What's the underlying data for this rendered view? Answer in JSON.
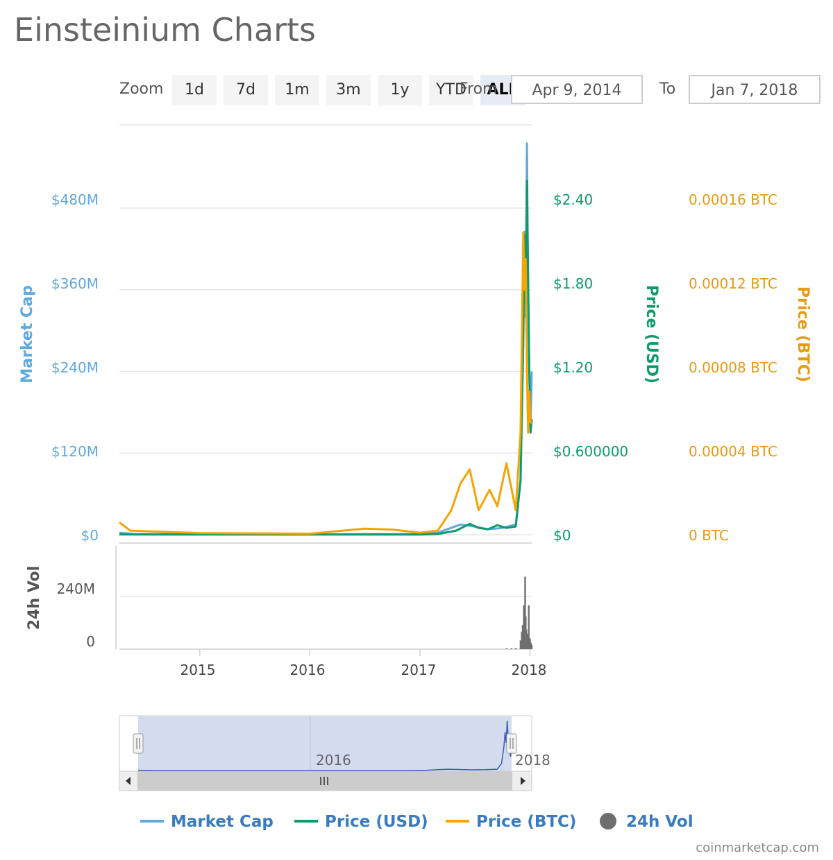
{
  "title": "Einsteinium Charts",
  "zoom": {
    "label": "Zoom",
    "buttons": [
      "1d",
      "7d",
      "1m",
      "3m",
      "1y",
      "YTD",
      "ALL"
    ],
    "active": "ALL"
  },
  "range": {
    "from_label": "From",
    "from_value": "Apr 9, 2014",
    "to_label": "To",
    "to_value": "Jan 7, 2018"
  },
  "colors": {
    "market_cap": "#5ea9dd",
    "price_usd": "#0d9a6e",
    "price_btc": "#f7a300",
    "volume": "#6e6e6e",
    "navigator": "#3b5cb8",
    "navigator_mask": "#d3dbef"
  },
  "chart_data": {
    "type": "line",
    "x_range": [
      "2014-04-09",
      "2018-01-07"
    ],
    "x_ticks": [
      "2015",
      "2016",
      "2017",
      "2018"
    ],
    "axes": {
      "market_cap": {
        "title": "Market Cap",
        "ticks": [
          "$0",
          "$120M",
          "$240M",
          "$360M",
          "$480M"
        ],
        "range": [
          0,
          600
        ]
      },
      "price_usd": {
        "title": "Price (USD)",
        "ticks": [
          "$0",
          "$0.600000",
          "$1.20",
          "$1.80",
          "$2.40"
        ],
        "range": [
          0,
          3.0
        ]
      },
      "price_btc": {
        "title": "Price (BTC)",
        "ticks": [
          "0 BTC",
          "0.00004 BTC",
          "0.00008 BTC",
          "0.00012 BTC",
          "0.00016 BTC"
        ],
        "range": [
          0,
          0.0002
        ]
      },
      "volume": {
        "title": "24h Vol",
        "ticks": [
          "0",
          "240M"
        ],
        "range": [
          0,
          400
        ]
      }
    },
    "series": [
      {
        "name": "Market Cap",
        "unit": "USD millions",
        "points": [
          [
            "2014-04-09",
            3
          ],
          [
            "2014-06-01",
            1
          ],
          [
            "2015-01-01",
            1
          ],
          [
            "2016-01-01",
            0.5
          ],
          [
            "2016-07-01",
            1
          ],
          [
            "2017-01-01",
            1
          ],
          [
            "2017-03-01",
            3
          ],
          [
            "2017-05-15",
            15
          ],
          [
            "2017-07-01",
            12
          ],
          [
            "2017-08-15",
            8
          ],
          [
            "2017-10-01",
            10
          ],
          [
            "2017-11-15",
            15
          ],
          [
            "2017-12-01",
            80
          ],
          [
            "2017-12-10",
            280
          ],
          [
            "2017-12-14",
            445
          ],
          [
            "2017-12-18",
            320
          ],
          [
            "2017-12-22",
            575
          ],
          [
            "2017-12-26",
            350
          ],
          [
            "2017-12-30",
            240
          ],
          [
            "2018-01-03",
            160
          ],
          [
            "2018-01-07",
            240
          ]
        ]
      },
      {
        "name": "Price (USD)",
        "points": [
          [
            "2014-04-09",
            0.002
          ],
          [
            "2015-01-01",
            0.001
          ],
          [
            "2016-01-01",
            0.0008
          ],
          [
            "2016-07-01",
            0.001
          ],
          [
            "2017-01-01",
            0.001
          ],
          [
            "2017-03-01",
            0.005
          ],
          [
            "2017-05-01",
            0.03
          ],
          [
            "2017-06-15",
            0.08
          ],
          [
            "2017-07-15",
            0.05
          ],
          [
            "2017-08-15",
            0.04
          ],
          [
            "2017-09-15",
            0.07
          ],
          [
            "2017-10-15",
            0.05
          ],
          [
            "2017-11-15",
            0.06
          ],
          [
            "2017-12-01",
            0.4
          ],
          [
            "2017-12-10",
            1.5
          ],
          [
            "2017-12-14",
            2.2
          ],
          [
            "2017-12-18",
            1.7
          ],
          [
            "2017-12-22",
            2.6
          ],
          [
            "2017-12-26",
            1.9
          ],
          [
            "2017-12-30",
            1.2
          ],
          [
            "2018-01-03",
            0.75
          ],
          [
            "2018-01-07",
            0.85
          ]
        ]
      },
      {
        "name": "Price (BTC)",
        "points": [
          [
            "2014-04-09",
            6e-06
          ],
          [
            "2014-05-15",
            2e-06
          ],
          [
            "2015-01-01",
            8e-07
          ],
          [
            "2016-01-01",
            5e-07
          ],
          [
            "2016-07-01",
            3e-06
          ],
          [
            "2016-10-01",
            2.5e-06
          ],
          [
            "2017-01-01",
            1e-06
          ],
          [
            "2017-03-01",
            2e-06
          ],
          [
            "2017-04-15",
            1.2e-05
          ],
          [
            "2017-05-15",
            2.5e-05
          ],
          [
            "2017-06-15",
            3.2e-05
          ],
          [
            "2017-07-15",
            1.2e-05
          ],
          [
            "2017-08-20",
            2.2e-05
          ],
          [
            "2017-09-15",
            1.4e-05
          ],
          [
            "2017-10-15",
            3.5e-05
          ],
          [
            "2017-11-15",
            1.2e-05
          ],
          [
            "2017-12-01",
            5e-05
          ],
          [
            "2017-12-10",
            0.000148
          ],
          [
            "2017-12-14",
            0.00012
          ],
          [
            "2017-12-18",
            0.000135
          ],
          [
            "2017-12-22",
            8e-05
          ],
          [
            "2017-12-26",
            5e-05
          ],
          [
            "2017-12-30",
            7e-05
          ],
          [
            "2018-01-03",
            5.5e-05
          ],
          [
            "2018-01-07",
            5.5e-05
          ]
        ]
      },
      {
        "name": "24h Vol",
        "unit": "USD millions",
        "points": [
          [
            "2017-10-15",
            4
          ],
          [
            "2017-11-01",
            4
          ],
          [
            "2017-11-15",
            5
          ],
          [
            "2017-12-01",
            40
          ],
          [
            "2017-12-05",
            80
          ],
          [
            "2017-12-08",
            110
          ],
          [
            "2017-12-10",
            60
          ],
          [
            "2017-12-12",
            200
          ],
          [
            "2017-12-14",
            120
          ],
          [
            "2017-12-16",
            330
          ],
          [
            "2017-12-18",
            150
          ],
          [
            "2017-12-20",
            90
          ],
          [
            "2017-12-24",
            70
          ],
          [
            "2017-12-28",
            200
          ],
          [
            "2018-01-01",
            50
          ],
          [
            "2018-01-04",
            30
          ],
          [
            "2018-01-07",
            20
          ]
        ]
      }
    ],
    "navigator": {
      "labels": [
        "2016",
        "2018"
      ],
      "selection": [
        "2014-04-09",
        "2018-01-07"
      ]
    },
    "grid": true,
    "legend_position": "bottom"
  },
  "legend": [
    "Market Cap",
    "Price (USD)",
    "Price (BTC)",
    "24h Vol"
  ],
  "credits": "coinmarketcap.com"
}
